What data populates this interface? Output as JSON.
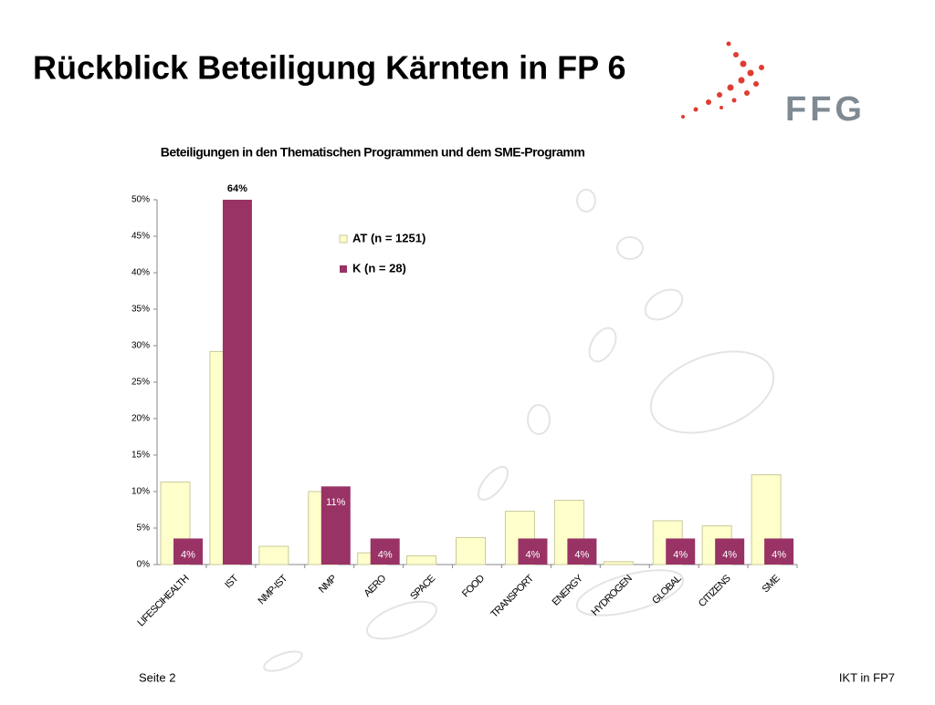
{
  "header": {
    "title": "Rückblick Beteiligung Kärnten in FP 6",
    "logo": "FFG"
  },
  "footer": {
    "left": "Seite 2",
    "right": "IKT in FP7"
  },
  "chart_data": {
    "type": "bar",
    "title": "Beteiligungen in den Thematischen Programmen und dem SME-Programm",
    "categories": [
      "LIFESCIHEALTH",
      "IST",
      "NMP-IST",
      "NMP",
      "AERO",
      "SPACE",
      "FOOD",
      "TRANSPORT",
      "ENERGY",
      "HYDROGEN",
      "GLOBAL",
      "CITIZENS",
      "SME"
    ],
    "series": [
      {
        "name": "AT (n = 1251)",
        "color": "#ffffcc",
        "values": [
          11.3,
          29.2,
          2.5,
          10.0,
          1.6,
          1.2,
          3.7,
          7.3,
          8.8,
          0.4,
          6.0,
          5.3,
          12.3
        ]
      },
      {
        "name": "K (n = 28)",
        "color": "#993366",
        "values": [
          3.57,
          64.29,
          null,
          10.71,
          3.57,
          null,
          null,
          3.57,
          3.57,
          null,
          3.57,
          3.57,
          3.57
        ],
        "value_labels": [
          "4%",
          "64%",
          null,
          "11%",
          "4%",
          null,
          null,
          "4%",
          "4%",
          null,
          "4%",
          "4%",
          "4%"
        ]
      }
    ],
    "ylim": [
      0,
      50
    ],
    "yticks": [
      {
        "value": 0,
        "label": "0%"
      },
      {
        "value": 5,
        "label": "5%"
      },
      {
        "value": 10,
        "label": "10%"
      },
      {
        "value": 15,
        "label": "15%"
      },
      {
        "value": 20,
        "label": "20%"
      },
      {
        "value": 25,
        "label": "25%"
      },
      {
        "value": 30,
        "label": "30%"
      },
      {
        "value": 35,
        "label": "35%"
      },
      {
        "value": 40,
        "label": "40%"
      },
      {
        "value": 45,
        "label": "45%"
      },
      {
        "value": 50,
        "label": "50%"
      }
    ]
  }
}
